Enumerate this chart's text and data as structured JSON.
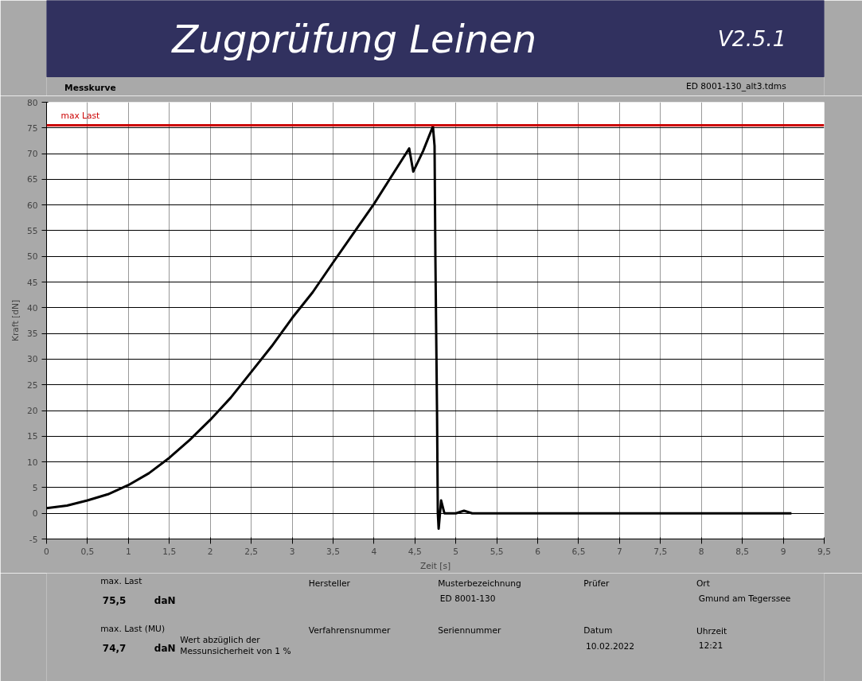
{
  "chart_data": {
    "type": "line",
    "title": "Zugprüfung Leinen",
    "subtitle": "Messkurve",
    "xlabel": "Zeit [s]",
    "ylabel": "Kraft [dN]",
    "annotations": [
      "V2.5.1",
      "ED 8001-130_alt3.tdms",
      "max. Last",
      "75,5",
      "daN",
      "max. Last (MU)",
      "74,7",
      "daN",
      "Wert abzüglich der",
      "Messunsicherheit von 1 %",
      "Hersteller",
      "Verfahrensnummer",
      "Musterbezeichnung",
      "ED 8001-130",
      "Seriennummer",
      "Prüfer",
      "Datum",
      "10.02.2022",
      "Ort",
      "Gmund am Tegerssee",
      "Uhrzeit",
      "12:21"
    ],
    "series": [
      {
        "color": "#000000",
        "x": [
          0,
          0.25,
          0.5,
          0.75,
          1,
          1.25,
          1.5,
          1.75,
          2,
          2.25,
          2.5,
          2.75,
          3,
          3.25,
          3.5,
          3.75,
          4,
          4.25,
          4.43,
          4.48,
          4.6,
          4.72,
          4.74,
          4.75,
          4.77,
          4.78,
          4.79,
          4.82,
          4.86,
          5,
          5.1,
          5.2,
          6,
          7,
          8,
          9.1
        ],
        "values": [
          1,
          1.5,
          2.5,
          3.7,
          5.5,
          7.8,
          10.8,
          14.3,
          18.2,
          22.5,
          27.5,
          32.5,
          38,
          43,
          48.8,
          54.5,
          60.2,
          66.5,
          71,
          66.5,
          70.5,
          75.3,
          71.5,
          50,
          20,
          0,
          -3,
          2.5,
          0,
          0,
          0.5,
          0,
          0,
          0,
          0,
          0
        ]
      }
    ],
    "xlim": [
      0,
      9.5
    ],
    "ylim": [
      -5,
      80
    ],
    "xticks": [
      0,
      {
        "value": 0.5,
        "label": "0,5"
      },
      1,
      {
        "value": 1.5,
        "label": "1,5"
      },
      2,
      {
        "value": 2.5,
        "label": "2,5"
      },
      3,
      {
        "value": 3.5,
        "label": "3,5"
      },
      4,
      {
        "value": 4.5,
        "label": "4,5"
      },
      5,
      {
        "value": 5.5,
        "label": "5,5"
      },
      6,
      {
        "value": 6.5,
        "label": "6,5"
      },
      7,
      {
        "value": 7.5,
        "label": "7,5"
      },
      8,
      {
        "value": 8.5,
        "label": "8,5"
      },
      9,
      {
        "value": 9.5,
        "label": "9,5"
      }
    ],
    "yticks": [
      -5,
      0,
      5,
      10,
      15,
      20,
      25,
      30,
      35,
      40,
      45,
      50,
      55,
      60,
      65,
      70,
      75,
      80
    ],
    "ref_lines": [
      {
        "axis": "y",
        "value": 75.5,
        "label": "max Last",
        "color": "#cc0000"
      }
    ],
    "grid": true,
    "line_style": "solid",
    "marker": "none"
  }
}
